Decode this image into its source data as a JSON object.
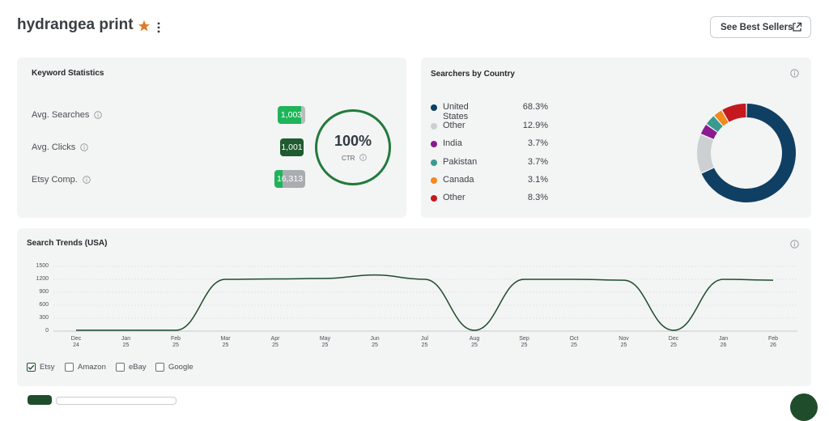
{
  "header": {
    "title": "hydrangea print",
    "best_sellers_label": "See Best Sellers"
  },
  "colors": {
    "accent_green": "#217a3b",
    "dark_green": "#1f5a30",
    "star_orange": "#e07b2a",
    "card_bg": "#f3f4f4"
  },
  "keyword_stats": {
    "title": "Keyword Statistics",
    "rows": [
      {
        "label": "Avg. Searches",
        "value": "1,003",
        "fill": 0.85
      },
      {
        "label": "Avg. Clicks",
        "value": "1,001",
        "fill": 1.0
      },
      {
        "label": "Etsy Comp.",
        "value": "16,313",
        "fill": 0.25
      }
    ],
    "ctr_value": "100%",
    "ctr_label": "CTR"
  },
  "country": {
    "title": "Searchers by Country",
    "items": [
      {
        "name": "United States",
        "pct": "68.3%",
        "value": 68.3,
        "color": "#0f3f63"
      },
      {
        "name": "Other",
        "pct": "12.9%",
        "value": 12.9,
        "color": "#cdd0d2"
      },
      {
        "name": "India",
        "pct": "3.7%",
        "value": 3.7,
        "color": "#8a1b8f"
      },
      {
        "name": "Pakistan",
        "pct": "3.7%",
        "value": 3.7,
        "color": "#3a9a92"
      },
      {
        "name": "Canada",
        "pct": "3.1%",
        "value": 3.1,
        "color": "#f28a1e"
      },
      {
        "name": "Other",
        "pct": "8.3%",
        "value": 8.3,
        "color": "#c4191f"
      }
    ]
  },
  "trends": {
    "title": "Search Trends (USA)",
    "y_ticks": [
      "1500",
      "1200",
      "900",
      "600",
      "300",
      "0"
    ],
    "x_ticks": [
      {
        "m": "Dec",
        "y": "24"
      },
      {
        "m": "Jan",
        "y": "25"
      },
      {
        "m": "Feb",
        "y": "25"
      },
      {
        "m": "Mar",
        "y": "25"
      },
      {
        "m": "Apr",
        "y": "25"
      },
      {
        "m": "May",
        "y": "25"
      },
      {
        "m": "Jun",
        "y": "25"
      },
      {
        "m": "Jul",
        "y": "25"
      },
      {
        "m": "Aug",
        "y": "25"
      },
      {
        "m": "Sep",
        "y": "25"
      },
      {
        "m": "Oct",
        "y": "25"
      },
      {
        "m": "Nov",
        "y": "25"
      },
      {
        "m": "Dec",
        "y": "25"
      },
      {
        "m": "Jan",
        "y": "26"
      },
      {
        "m": "Feb",
        "y": "26"
      }
    ],
    "checkboxes": [
      {
        "label": "Etsy",
        "checked": true
      },
      {
        "label": "Amazon",
        "checked": false
      },
      {
        "label": "eBay",
        "checked": false
      },
      {
        "label": "Google",
        "checked": false
      }
    ]
  },
  "chart_data": {
    "type": "line",
    "title": "Search Trends (USA)",
    "x": [
      "Dec 24",
      "Jan 25",
      "Feb 25",
      "Mar 25",
      "Apr 25",
      "May 25",
      "Jun 25",
      "Jul 25",
      "Aug 25",
      "Sep 25",
      "Oct 25",
      "Nov 25",
      "Dec 25",
      "Jan 26",
      "Feb 26"
    ],
    "series": [
      {
        "name": "Etsy",
        "values": [
          20,
          20,
          20,
          1200,
          1210,
          1220,
          1300,
          1200,
          20,
          1200,
          1200,
          1180,
          20,
          1200,
          1180
        ]
      }
    ],
    "ylim": [
      0,
      1500
    ],
    "grid": true
  }
}
